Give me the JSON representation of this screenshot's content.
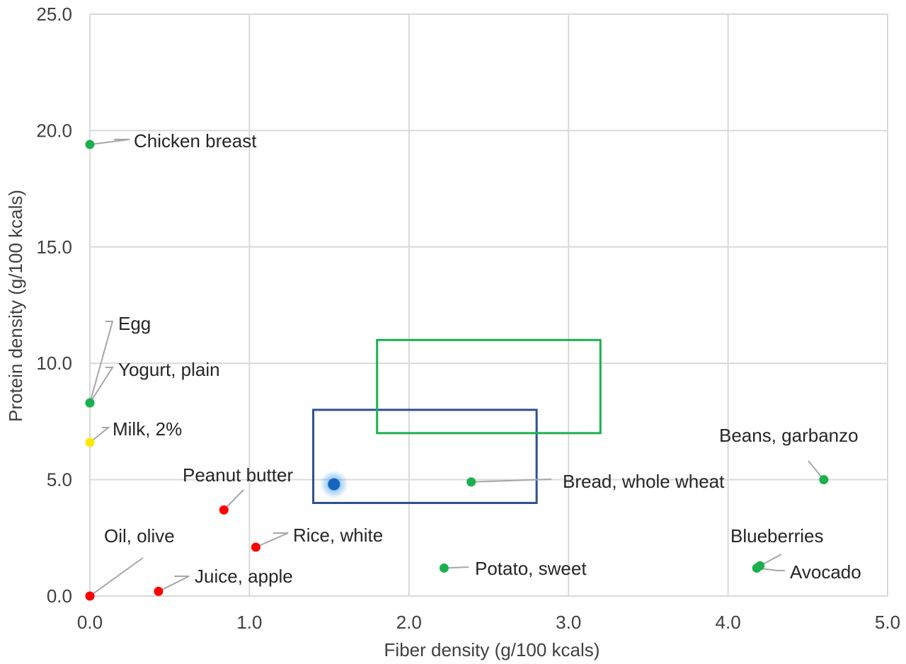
{
  "chart_data": {
    "type": "scatter",
    "xlabel": "Fiber density (g/100 kcals)",
    "ylabel": "Protein density (g/100 kcals)",
    "xlim": [
      0,
      5
    ],
    "ylim": [
      0,
      25
    ],
    "x_ticks": [
      "0.0",
      "1.0",
      "2.0",
      "3.0",
      "4.0",
      "5.0"
    ],
    "y_ticks": [
      "0.0",
      "5.0",
      "10.0",
      "15.0",
      "20.0",
      "25.0"
    ],
    "grid": true,
    "points": [
      {
        "label": "Chicken breast",
        "x": 0.0,
        "y": 19.4,
        "color": "#1bb04f"
      },
      {
        "label": "Egg",
        "x": 0.0,
        "y": 8.3,
        "color": "#1bb04f"
      },
      {
        "label": "Yogurt, plain",
        "x": 0.0,
        "y": 8.3,
        "color": "#1bb04f"
      },
      {
        "label": "Milk, 2%",
        "x": 0.0,
        "y": 6.6,
        "color": "#ffe600"
      },
      {
        "label": "Oil, olive",
        "x": 0.0,
        "y": 0.0,
        "color": "#ff0000"
      },
      {
        "label": "Juice, apple",
        "x": 0.43,
        "y": 0.2,
        "color": "#ff0000"
      },
      {
        "label": "Peanut butter",
        "x": 0.84,
        "y": 3.7,
        "color": "#ff0000"
      },
      {
        "label": "Rice, white",
        "x": 1.04,
        "y": 2.1,
        "color": "#ff0000"
      },
      {
        "label": "Bread, whole wheat",
        "x": 2.39,
        "y": 4.9,
        "color": "#1bb04f"
      },
      {
        "label": "Potato, sweet",
        "x": 2.22,
        "y": 1.2,
        "color": "#1bb04f"
      },
      {
        "label": "Beans, garbanzo",
        "x": 4.6,
        "y": 5.0,
        "color": "#1bb04f"
      },
      {
        "label": "Blueberries",
        "x": 4.2,
        "y": 1.3,
        "color": "#1bb04f"
      },
      {
        "label": "Avocado",
        "x": 4.18,
        "y": 1.2,
        "color": "#1bb04f"
      },
      {
        "label": "",
        "x": 1.53,
        "y": 4.8,
        "color": "#1565c0",
        "highlight": true
      }
    ],
    "boxes": [
      {
        "x": [
          1.4,
          2.8
        ],
        "y": [
          4.0,
          8.0
        ],
        "color": "#2f4f8f"
      },
      {
        "x": [
          1.8,
          3.2
        ],
        "y": [
          7.0,
          11.0
        ],
        "color": "#1bb04f"
      }
    ]
  }
}
